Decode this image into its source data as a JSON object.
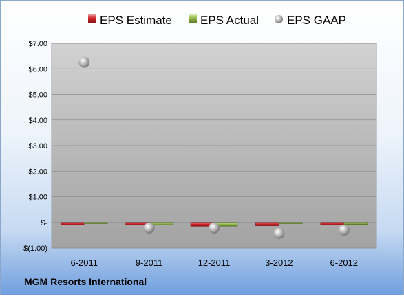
{
  "chart_data": {
    "type": "bar",
    "categories": [
      "6-2011",
      "9-2011",
      "12-2011",
      "3-2012",
      "6-2012"
    ],
    "series": [
      {
        "name": "EPS Estimate",
        "kind": "bar",
        "color": "#c0282d",
        "values": [
          -0.1,
          -0.1,
          -0.15,
          -0.13,
          -0.1
        ]
      },
      {
        "name": "EPS Actual",
        "kind": "bar",
        "color": "#8db04a",
        "values": [
          -0.01,
          -0.1,
          -0.15,
          -0.05,
          -0.08
        ]
      },
      {
        "name": "EPS GAAP",
        "kind": "marker",
        "color": "#a0a0a0",
        "values": [
          6.26,
          -0.22,
          -0.22,
          -0.43,
          -0.3
        ]
      }
    ],
    "y_ticks": [
      {
        "value": 7,
        "label": "$7.00"
      },
      {
        "value": 6,
        "label": "$6.00"
      },
      {
        "value": 5,
        "label": "$5.00"
      },
      {
        "value": 4,
        "label": "$4.00"
      },
      {
        "value": 3,
        "label": "$3.00"
      },
      {
        "value": 2,
        "label": "$2.00"
      },
      {
        "value": 1,
        "label": "$1.00"
      },
      {
        "value": 0,
        "label": "$-"
      },
      {
        "value": -1,
        "label": "$(1.00)"
      }
    ],
    "ylim": [
      -1,
      7
    ],
    "grid": true,
    "legend_position": "top"
  },
  "footer": {
    "company": "MGM Resorts International"
  }
}
